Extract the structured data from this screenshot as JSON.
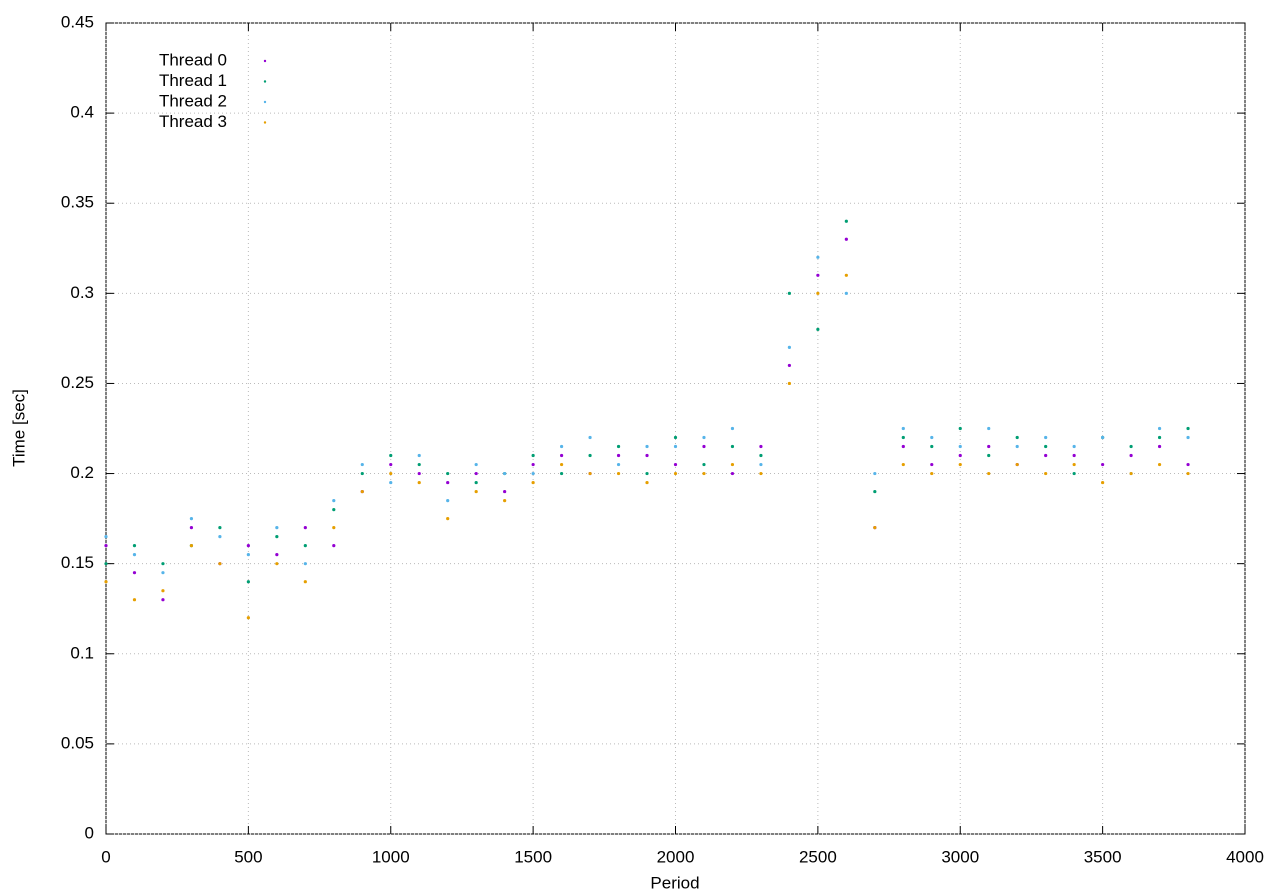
{
  "chart_data": {
    "type": "scatter",
    "x_label": "Period",
    "y_label": "Time [sec]",
    "xlim": [
      0,
      4000
    ],
    "xticks": [
      0,
      500,
      1000,
      1500,
      2000,
      2500,
      3000,
      3500,
      4000
    ],
    "ylim": [
      0,
      0.45
    ],
    "yticks": [
      0,
      0.05,
      0.1,
      0.15,
      0.2,
      0.25,
      0.3,
      0.35,
      0.4,
      0.45
    ],
    "grid": true,
    "legend": "upper-left",
    "x": [
      0,
      100,
      200,
      300,
      400,
      500,
      600,
      700,
      800,
      900,
      1000,
      1100,
      1200,
      1300,
      1400,
      1500,
      1600,
      1700,
      1800,
      1900,
      2000,
      2100,
      2200,
      2300,
      2400,
      2500,
      2600,
      2700,
      2800,
      2900,
      3000,
      3100,
      3200,
      3300,
      3400,
      3500,
      3600,
      3700,
      3800
    ],
    "series": [
      {
        "name": "Thread 0",
        "color": "#9400d3",
        "values": [
          0.16,
          0.145,
          0.13,
          0.17,
          0.15,
          0.16,
          0.155,
          0.17,
          0.16,
          0.19,
          0.205,
          0.2,
          0.195,
          0.2,
          0.19,
          0.205,
          0.21,
          0.2,
          0.21,
          0.21,
          0.205,
          0.215,
          0.2,
          0.215,
          0.26,
          0.31,
          0.33,
          0.17,
          0.215,
          0.205,
          0.21,
          0.215,
          0.205,
          0.21,
          0.21,
          0.205,
          0.21,
          0.215,
          0.205
        ]
      },
      {
        "name": "Thread 1",
        "color": "#009e73",
        "values": [
          0.15,
          0.16,
          0.15,
          0.16,
          0.17,
          0.14,
          0.165,
          0.16,
          0.18,
          0.2,
          0.21,
          0.205,
          0.2,
          0.195,
          0.2,
          0.21,
          0.2,
          0.21,
          0.215,
          0.2,
          0.22,
          0.205,
          0.215,
          0.21,
          0.3,
          0.28,
          0.34,
          0.19,
          0.22,
          0.215,
          0.225,
          0.21,
          0.22,
          0.215,
          0.2,
          0.22,
          0.215,
          0.22,
          0.225
        ]
      },
      {
        "name": "Thread 2",
        "color": "#56b4e9",
        "values": [
          0.165,
          0.155,
          0.145,
          0.175,
          0.165,
          0.155,
          0.17,
          0.15,
          0.185,
          0.205,
          0.195,
          0.21,
          0.185,
          0.205,
          0.2,
          0.2,
          0.215,
          0.22,
          0.205,
          0.215,
          0.215,
          0.22,
          0.225,
          0.205,
          0.27,
          0.32,
          0.3,
          0.2,
          0.225,
          0.22,
          0.215,
          0.225,
          0.215,
          0.22,
          0.215,
          0.22,
          0.2,
          0.225,
          0.22
        ]
      },
      {
        "name": "Thread 3",
        "color": "#e69f00",
        "values": [
          0.14,
          0.13,
          0.135,
          0.16,
          0.15,
          0.12,
          0.15,
          0.14,
          0.17,
          0.19,
          0.2,
          0.195,
          0.175,
          0.19,
          0.185,
          0.195,
          0.205,
          0.2,
          0.2,
          0.195,
          0.2,
          0.2,
          0.205,
          0.2,
          0.25,
          0.3,
          0.31,
          0.17,
          0.205,
          0.2,
          0.205,
          0.2,
          0.205,
          0.2,
          0.205,
          0.195,
          0.2,
          0.205,
          0.2
        ]
      }
    ]
  }
}
